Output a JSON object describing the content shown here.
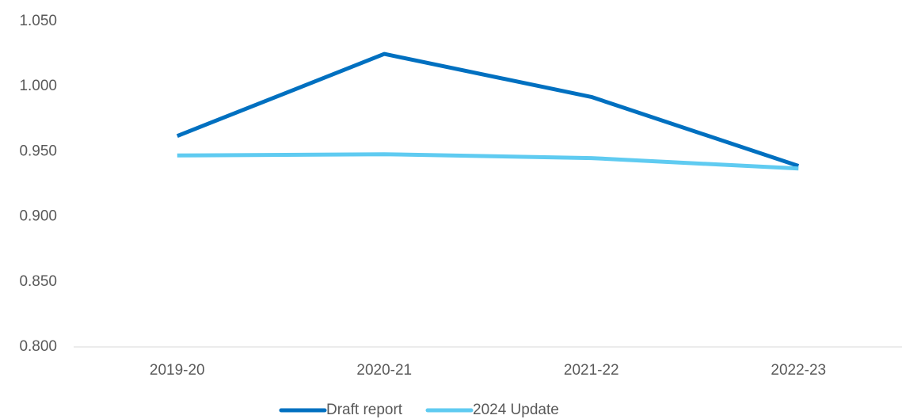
{
  "chart_data": {
    "type": "line",
    "categories": [
      "2019-20",
      "2020-21",
      "2021-22",
      "2022-23"
    ],
    "series": [
      {
        "name": "Draft report",
        "color": "#0070c0",
        "values": [
          0.962,
          1.025,
          0.992,
          0.939
        ]
      },
      {
        "name": "2024 Update",
        "color": "#5fcbf1",
        "values": [
          0.947,
          0.948,
          0.945,
          0.937
        ]
      }
    ],
    "ylim": [
      0.8,
      1.05
    ],
    "yticks": [
      {
        "value": 0.8,
        "label": "0.800"
      },
      {
        "value": 0.85,
        "label": "0.850"
      },
      {
        "value": 0.9,
        "label": "0.900"
      },
      {
        "value": 0.95,
        "label": "0.950"
      },
      {
        "value": 1.0,
        "label": "1.000"
      },
      {
        "value": 1.05,
        "label": "1.050"
      }
    ],
    "grid": false,
    "legend": "bottom"
  }
}
